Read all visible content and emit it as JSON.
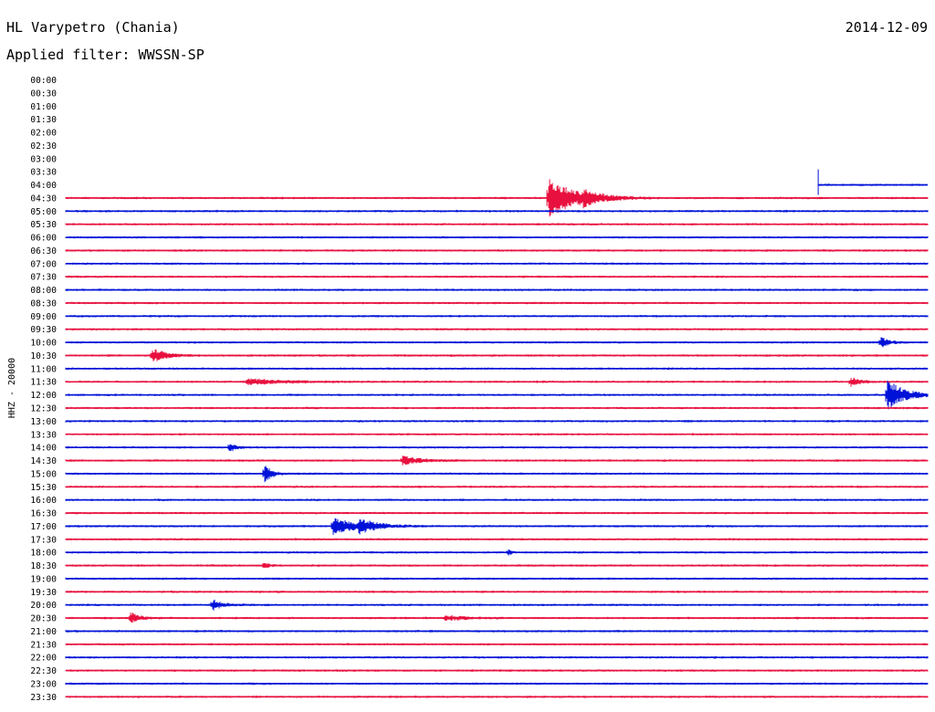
{
  "header": {
    "station": "HL Varypetro (Chania)",
    "date": "2014-12-09",
    "filter": "Applied filter: WWSSN-SP"
  },
  "chart_data": {
    "type": "line",
    "title": "HL Varypetro (Chania)",
    "channel_label": "HHZ - 20000",
    "row_times": [
      "00:00",
      "00:30",
      "01:00",
      "01:30",
      "02:00",
      "02:30",
      "03:00",
      "03:30",
      "04:00",
      "04:30",
      "05:00",
      "05:30",
      "06:00",
      "06:30",
      "07:00",
      "07:30",
      "08:00",
      "08:30",
      "09:00",
      "09:30",
      "10:00",
      "10:30",
      "11:00",
      "11:30",
      "12:00",
      "12:30",
      "13:00",
      "13:30",
      "14:00",
      "14:30",
      "15:00",
      "15:30",
      "16:00",
      "16:30",
      "17:00",
      "17:30",
      "18:00",
      "18:30",
      "19:00",
      "19:30",
      "20:00",
      "20:30",
      "21:00",
      "21:30",
      "22:00",
      "22:30",
      "23:00",
      "23:30"
    ],
    "first_data_row": "04:00",
    "trace_start_fraction_first_row": 0.873,
    "x_range_fraction": [
      0,
      1
    ],
    "row_colors": [
      "#e8103e",
      "#0012d8"
    ],
    "events": [
      {
        "row": "04:30",
        "at": 0.56,
        "amp": 22,
        "dur": 0.03
      },
      {
        "row": "04:30",
        "at": 0.6,
        "amp": 5,
        "dur": 0.015
      },
      {
        "row": "10:00",
        "at": 0.945,
        "amp": 7,
        "dur": 0.008
      },
      {
        "row": "10:30",
        "at": 0.1,
        "amp": 8,
        "dur": 0.015
      },
      {
        "row": "11:30",
        "at": 0.21,
        "amp": 3,
        "dur": 0.04
      },
      {
        "row": "11:30",
        "at": 0.91,
        "amp": 5,
        "dur": 0.01
      },
      {
        "row": "12:00",
        "at": 0.953,
        "amp": 17,
        "dur": 0.018
      },
      {
        "row": "14:00",
        "at": 0.19,
        "amp": 6,
        "dur": 0.006
      },
      {
        "row": "14:30",
        "at": 0.39,
        "amp": 5,
        "dur": 0.02
      },
      {
        "row": "15:00",
        "at": 0.23,
        "amp": 11,
        "dur": 0.008
      },
      {
        "row": "17:00",
        "at": 0.31,
        "amp": 9,
        "dur": 0.025
      },
      {
        "row": "17:00",
        "at": 0.34,
        "amp": 6,
        "dur": 0.02
      },
      {
        "row": "18:00",
        "at": 0.513,
        "amp": 4,
        "dur": 0.003
      },
      {
        "row": "18:30",
        "at": 0.23,
        "amp": 4,
        "dur": 0.005
      },
      {
        "row": "20:00",
        "at": 0.17,
        "amp": 6,
        "dur": 0.01
      },
      {
        "row": "20:30",
        "at": 0.075,
        "amp": 6,
        "dur": 0.01
      },
      {
        "row": "20:30",
        "at": 0.44,
        "amp": 3,
        "dur": 0.02
      }
    ]
  }
}
